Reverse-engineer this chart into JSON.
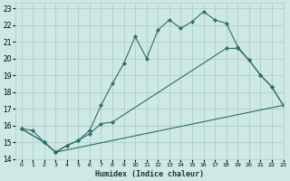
{
  "xlabel": "Humidex (Indice chaleur)",
  "bg_color": "#cde8e5",
  "grid_color": "#aed0cc",
  "line_color": "#2d6e65",
  "xlim": [
    -0.5,
    23
  ],
  "ylim": [
    14,
    23.3
  ],
  "yticks": [
    14,
    15,
    16,
    17,
    18,
    19,
    20,
    21,
    22,
    23
  ],
  "xticks": [
    0,
    1,
    2,
    3,
    4,
    5,
    6,
    7,
    8,
    9,
    10,
    11,
    12,
    13,
    14,
    15,
    16,
    17,
    18,
    19,
    20,
    21,
    22,
    23
  ],
  "line1_x": [
    0,
    1,
    2,
    3,
    4,
    5,
    6,
    7,
    8,
    9,
    10,
    11,
    12,
    13,
    14,
    15,
    16,
    17,
    18,
    19,
    20,
    21,
    22,
    23
  ],
  "line1_y": [
    15.8,
    15.7,
    15.0,
    14.4,
    14.8,
    15.1,
    15.7,
    17.2,
    18.5,
    19.7,
    21.3,
    20.0,
    21.7,
    22.3,
    21.8,
    22.2,
    22.8,
    22.3,
    22.1,
    20.7,
    19.9,
    19.0,
    18.3,
    17.2
  ],
  "line2_x": [
    0,
    2,
    3,
    4,
    5,
    6,
    7,
    8,
    18,
    19,
    20,
    21,
    22,
    23
  ],
  "line2_y": [
    15.8,
    15.0,
    14.4,
    14.8,
    15.1,
    15.5,
    16.1,
    16.2,
    20.6,
    20.6,
    19.9,
    19.0,
    18.3,
    17.2
  ],
  "line3_x": [
    0,
    2,
    3,
    23
  ],
  "line3_y": [
    15.8,
    15.0,
    14.4,
    17.2
  ]
}
